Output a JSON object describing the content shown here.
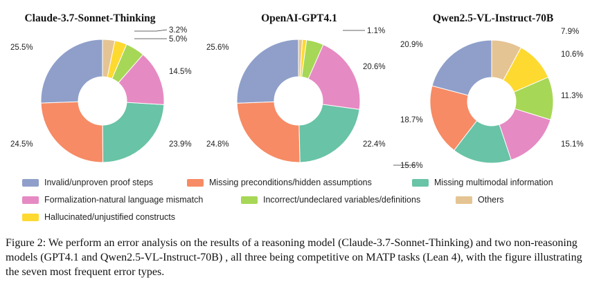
{
  "chart_data": [
    {
      "type": "pie",
      "title": "Claude-3.7-Sonnet-Thinking",
      "categories": [
        "Invalid/unproven proof steps",
        "Missing preconditions/hidden assumptions",
        "Missing multimodal information",
        "Formalization-natural language mismatch",
        "Incorrect/undeclared variables/definitions",
        "Hallucinated/unjustified constructs",
        "Others"
      ],
      "values": [
        25.5,
        24.5,
        23.9,
        14.5,
        5.0,
        3.2,
        3.2
      ],
      "labels": [
        "25.5%",
        "24.5%",
        "23.9%",
        "14.5%",
        "5.0%",
        "3.2%",
        ""
      ]
    },
    {
      "type": "pie",
      "title": "OpenAI-GPT4.1",
      "categories": [
        "Invalid/unproven proof steps",
        "Missing preconditions/hidden assumptions",
        "Missing multimodal information",
        "Formalization-natural language mismatch",
        "Incorrect/undeclared variables/definitions",
        "Hallucinated/unjustified constructs",
        "Others"
      ],
      "values": [
        25.6,
        24.8,
        22.4,
        20.6,
        4.5,
        1.1,
        1.0
      ],
      "labels": [
        "25.6%",
        "24.8%",
        "22.4%",
        "20.6%",
        "",
        "1.1%",
        ""
      ]
    },
    {
      "type": "pie",
      "title": "Qwen2.5-VL-Instruct-70B",
      "categories": [
        "Invalid/unproven proof steps",
        "Missing preconditions/hidden assumptions",
        "Missing multimodal information",
        "Formalization-natural language mismatch",
        "Incorrect/undeclared variables/definitions",
        "Hallucinated/unjustified constructs",
        "Others"
      ],
      "values": [
        20.9,
        18.7,
        15.6,
        15.1,
        11.3,
        10.6,
        7.9
      ],
      "labels": [
        "20.9%",
        "18.7%",
        "15.6%",
        "15.1%",
        "11.3%",
        "10.6%",
        "7.9%"
      ]
    }
  ],
  "legend": [
    {
      "label": "Invalid/unproven proof steps",
      "color": "#8f9fca"
    },
    {
      "label": "Missing preconditions/hidden assumptions",
      "color": "#f68b65"
    },
    {
      "label": "Missing multimodal information",
      "color": "#69c3a6"
    },
    {
      "label": "Formalization-natural language mismatch",
      "color": "#e68ac3"
    },
    {
      "label": "Incorrect/undeclared variables/definitions",
      "color": "#a7d756"
    },
    {
      "label": "Others",
      "color": "#e5c493"
    },
    {
      "label": "Hallucinated/unjustified constructs",
      "color": "#fed930"
    }
  ],
  "caption": "Figure 2: We perform an error analysis on the results of a reasoning model (Claude-3.7-Sonnet-Thinking) and two non-reasoning models (GPT4.1 and Qwen2.5-VL-Instruct-70B) , all three being competitive on MATP tasks (Lean 4), with the figure illustrating the seven most frequent error types."
}
